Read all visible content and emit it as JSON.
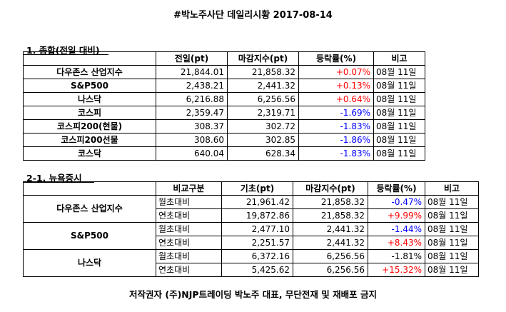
{
  "title": "#박노주사단 데일리시황 2017-08-14",
  "section1": {
    "heading": "1. 종합(전일 대비)",
    "columns": [
      "",
      "전일(pt)",
      "마감지수(pt)",
      "등락률(%)",
      "비고"
    ],
    "rows": [
      {
        "name": "다우존스 산업지수",
        "prev": "21,844.01",
        "close": "21,858.32",
        "change": "+0.07%",
        "change_color": "#ff0000",
        "note": "08월 11일"
      },
      {
        "name": "S&P500",
        "prev": "2,438.21",
        "close": "2,441.32",
        "change": "+0.13%",
        "change_color": "#ff0000",
        "note": "08월 11일"
      },
      {
        "name": "나스닥",
        "prev": "6,216.88",
        "close": "6,256.56",
        "change": "+0.64%",
        "change_color": "#ff0000",
        "note": "08월 11일"
      },
      {
        "name": "코스피",
        "prev": "2,359.47",
        "close": "2,319.71",
        "change": "-1.69%",
        "change_color": "#0000ff",
        "note": "08월 11일"
      },
      {
        "name": "코스피200(현물)",
        "prev": "308.37",
        "close": "302.72",
        "change": "-1.83%",
        "change_color": "#0000ff",
        "note": "08월 11일"
      },
      {
        "name": "코스피200선물",
        "prev": "308.60",
        "close": "302.85",
        "change": "-1.86%",
        "change_color": "#0000ff",
        "note": "08월 11일"
      },
      {
        "name": "코스닥",
        "prev": "640.04",
        "close": "628.34",
        "change": "-1.83%",
        "change_color": "#0000ff",
        "note": "08월 11일"
      }
    ]
  },
  "section2": {
    "heading": "2-1. 뉴욕증시",
    "columns": [
      "",
      "비교구분",
      "기초(pt)",
      "마감지수(pt)",
      "등락률(%)",
      "비고"
    ],
    "groups": [
      {
        "name": "다우존스 산업지수",
        "rows": [
          {
            "type": "월초대비",
            "base": "21,961.42",
            "close": "21,858.32",
            "change": "-0.47%",
            "change_color": "#0000ff",
            "note": "08월 11일"
          },
          {
            "type": "연초대비",
            "base": "19,872.86",
            "close": "21,858.32",
            "change": "+9.99%",
            "change_color": "#ff0000",
            "note": "08월 11일"
          }
        ]
      },
      {
        "name": "S&P500",
        "rows": [
          {
            "type": "월초대비",
            "base": "2,477.10",
            "close": "2,441.32",
            "change": "-1.44%",
            "change_color": "#0000ff",
            "note": "08월 11일"
          },
          {
            "type": "연초대비",
            "base": "2,251.57",
            "close": "2,441.32",
            "change": "+8.43%",
            "change_color": "#ff0000",
            "note": "08월 11일"
          }
        ]
      },
      {
        "name": "나스닥",
        "rows": [
          {
            "type": "월초대비",
            "base": "6,372.16",
            "close": "6,256.56",
            "change": "-1.81%",
            "change_color": "#000000",
            "note": "08월 11일"
          },
          {
            "type": "연초대비",
            "base": "5,425.62",
            "close": "6,256.56",
            "change": "+15.32%",
            "change_color": "#ff0000",
            "note": "08월 11일"
          }
        ]
      }
    ]
  },
  "footer": "저작권자 (주)NJP트레이딩 박노주 대표, 무단전재 및 재배포 금지"
}
